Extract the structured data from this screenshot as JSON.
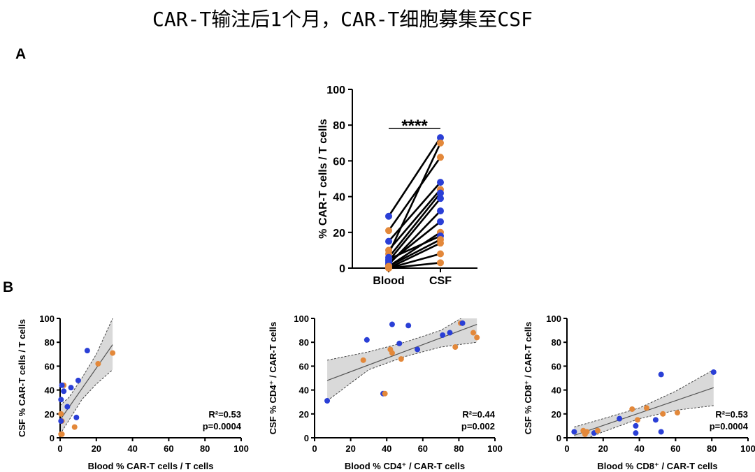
{
  "page": {
    "title": "CAR-T输注后1个月，CAR-T细胞募集至CSF",
    "panel_a_label": "A",
    "panel_b_label": "B"
  },
  "colors": {
    "blue": "#2a3fd6",
    "orange": "#e3883a",
    "band": "#d9d9d9"
  },
  "chart_data": [
    {
      "type": "line",
      "id": "panelA",
      "title": "",
      "xlabel": "",
      "ylabel": "% CAR-T cells / T cells",
      "categories": [
        "Blood",
        "CSF"
      ],
      "ylim": [
        0,
        100
      ],
      "yticks": [
        0,
        20,
        40,
        60,
        80,
        100
      ],
      "significance": "****",
      "pairs": [
        {
          "blood": 29,
          "csf": 73,
          "color": "blue"
        },
        {
          "blood": 8,
          "csf": 70,
          "color": "orange"
        },
        {
          "blood": 21,
          "csf": 62,
          "color": "orange"
        },
        {
          "blood": 15,
          "csf": 48,
          "color": "blue"
        },
        {
          "blood": 10,
          "csf": 44,
          "color": "orange"
        },
        {
          "blood": 6,
          "csf": 42,
          "color": "blue"
        },
        {
          "blood": 4,
          "csf": 39,
          "color": "blue"
        },
        {
          "blood": 2,
          "csf": 32,
          "color": "blue"
        },
        {
          "blood": 3,
          "csf": 26,
          "color": "blue"
        },
        {
          "blood": 1,
          "csf": 20,
          "color": "orange"
        },
        {
          "blood": 5,
          "csf": 18,
          "color": "blue"
        },
        {
          "blood": 1,
          "csf": 16,
          "color": "orange"
        },
        {
          "blood": 0,
          "csf": 14,
          "color": "orange"
        },
        {
          "blood": 0,
          "csf": 8,
          "color": "orange"
        },
        {
          "blood": 0,
          "csf": 3,
          "color": "orange"
        }
      ]
    },
    {
      "type": "scatter",
      "id": "panelB1",
      "xlabel": "Blood % CAR-T cells / T cells",
      "ylabel": "CSF % CAR-T cells / T cells",
      "xlim": [
        0,
        100
      ],
      "ylim": [
        0,
        100
      ],
      "xticks": [
        0,
        20,
        40,
        60,
        80,
        100
      ],
      "yticks": [
        0,
        20,
        40,
        60,
        80,
        100
      ],
      "r2_label": "R²=0.53",
      "p_label": "p=0.0004",
      "fit": {
        "x0": 0,
        "y0": 15,
        "x1": 29,
        "y1": 78
      },
      "band_upper": [
        [
          0,
          27
        ],
        [
          5,
          34
        ],
        [
          12,
          50
        ],
        [
          20,
          70
        ],
        [
          29,
          100
        ]
      ],
      "band_lower": [
        [
          0,
          3
        ],
        [
          5,
          15
        ],
        [
          12,
          32
        ],
        [
          20,
          45
        ],
        [
          29,
          57
        ]
      ],
      "points": [
        {
          "x": 2,
          "y": 44,
          "color": "orange"
        },
        {
          "x": 1,
          "y": 44,
          "color": "blue"
        },
        {
          "x": 2,
          "y": 39,
          "color": "blue"
        },
        {
          "x": 6,
          "y": 42,
          "color": "blue"
        },
        {
          "x": 0.5,
          "y": 32,
          "color": "blue"
        },
        {
          "x": 4,
          "y": 26,
          "color": "blue"
        },
        {
          "x": 0.5,
          "y": 20,
          "color": "orange"
        },
        {
          "x": 1,
          "y": 14,
          "color": "orange"
        },
        {
          "x": 0.5,
          "y": 14,
          "color": "blue"
        },
        {
          "x": 9,
          "y": 17,
          "color": "blue"
        },
        {
          "x": 8,
          "y": 9,
          "color": "orange"
        },
        {
          "x": 0.5,
          "y": 3,
          "color": "orange"
        },
        {
          "x": 1,
          "y": 3,
          "color": "orange"
        },
        {
          "x": 10,
          "y": 48,
          "color": "blue"
        },
        {
          "x": 15,
          "y": 73,
          "color": "blue"
        },
        {
          "x": 21,
          "y": 62,
          "color": "orange"
        },
        {
          "x": 29,
          "y": 71,
          "color": "orange"
        }
      ]
    },
    {
      "type": "scatter",
      "id": "panelB2",
      "xlabel": "Blood % CD4⁺ / CAR-T cells",
      "ylabel": "CSF % CD4⁺ / CAR-T cells",
      "xlim": [
        0,
        100
      ],
      "ylim": [
        0,
        100
      ],
      "xticks": [
        0,
        20,
        40,
        60,
        80,
        100
      ],
      "yticks": [
        0,
        20,
        40,
        60,
        80,
        100
      ],
      "r2_label": "R²=0.44",
      "p_label": "p=0.002",
      "fit": {
        "x0": 7,
        "y0": 48,
        "x1": 90,
        "y1": 95
      },
      "band_upper": [
        [
          7,
          65
        ],
        [
          30,
          72
        ],
        [
          50,
          80
        ],
        [
          70,
          90
        ],
        [
          90,
          108
        ]
      ],
      "band_lower": [
        [
          7,
          31
        ],
        [
          30,
          57
        ],
        [
          50,
          68
        ],
        [
          70,
          76
        ],
        [
          90,
          80
        ]
      ],
      "points": [
        {
          "x": 7,
          "y": 31,
          "color": "blue"
        },
        {
          "x": 27,
          "y": 65,
          "color": "orange"
        },
        {
          "x": 29,
          "y": 82,
          "color": "blue"
        },
        {
          "x": 38,
          "y": 37,
          "color": "blue"
        },
        {
          "x": 39,
          "y": 37,
          "color": "orange"
        },
        {
          "x": 42,
          "y": 74,
          "color": "orange"
        },
        {
          "x": 43,
          "y": 71,
          "color": "orange"
        },
        {
          "x": 43,
          "y": 95,
          "color": "blue"
        },
        {
          "x": 47,
          "y": 79,
          "color": "blue"
        },
        {
          "x": 48,
          "y": 66,
          "color": "orange"
        },
        {
          "x": 52,
          "y": 94,
          "color": "blue"
        },
        {
          "x": 57,
          "y": 74,
          "color": "blue"
        },
        {
          "x": 71,
          "y": 86,
          "color": "blue"
        },
        {
          "x": 75,
          "y": 88,
          "color": "blue"
        },
        {
          "x": 78,
          "y": 76,
          "color": "orange"
        },
        {
          "x": 81,
          "y": 96,
          "color": "orange"
        },
        {
          "x": 82,
          "y": 96,
          "color": "blue"
        },
        {
          "x": 88,
          "y": 88,
          "color": "orange"
        },
        {
          "x": 90,
          "y": 84,
          "color": "orange"
        }
      ]
    },
    {
      "type": "scatter",
      "id": "panelB3",
      "xlabel": "Blood % CD8⁺ / CAR-T cells",
      "ylabel": "CSF % CD8⁺ / CAR-T cells",
      "xlim": [
        0,
        100
      ],
      "ylim": [
        0,
        100
      ],
      "xticks": [
        0,
        20,
        40,
        60,
        80,
        100
      ],
      "yticks": [
        0,
        20,
        40,
        60,
        80,
        100
      ],
      "r2_label": "R²=0.53",
      "p_label": "p=0.0004",
      "fit": {
        "x0": 4,
        "y0": 2,
        "x1": 81,
        "y1": 42
      },
      "band_upper": [
        [
          4,
          9
        ],
        [
          20,
          16
        ],
        [
          40,
          25
        ],
        [
          60,
          39
        ],
        [
          81,
          57
        ]
      ],
      "band_lower": [
        [
          4,
          -5
        ],
        [
          20,
          5
        ],
        [
          40,
          16
        ],
        [
          60,
          23
        ],
        [
          81,
          27
        ]
      ],
      "points": [
        {
          "x": 4,
          "y": 5,
          "color": "blue"
        },
        {
          "x": 9,
          "y": 6,
          "color": "orange"
        },
        {
          "x": 10,
          "y": 3,
          "color": "orange"
        },
        {
          "x": 11,
          "y": 5,
          "color": "orange"
        },
        {
          "x": 15,
          "y": 4,
          "color": "blue"
        },
        {
          "x": 17,
          "y": 6,
          "color": "orange"
        },
        {
          "x": 29,
          "y": 16,
          "color": "blue"
        },
        {
          "x": 36,
          "y": 24,
          "color": "orange"
        },
        {
          "x": 38,
          "y": 10,
          "color": "blue"
        },
        {
          "x": 38,
          "y": 4,
          "color": "blue"
        },
        {
          "x": 39,
          "y": 15,
          "color": "orange"
        },
        {
          "x": 44,
          "y": 25,
          "color": "orange"
        },
        {
          "x": 49,
          "y": 15,
          "color": "blue"
        },
        {
          "x": 52,
          "y": 53,
          "color": "blue"
        },
        {
          "x": 52,
          "y": 5,
          "color": "blue"
        },
        {
          "x": 53,
          "y": 20,
          "color": "orange"
        },
        {
          "x": 61,
          "y": 21,
          "color": "orange"
        },
        {
          "x": 81,
          "y": 55,
          "color": "blue"
        }
      ]
    }
  ]
}
